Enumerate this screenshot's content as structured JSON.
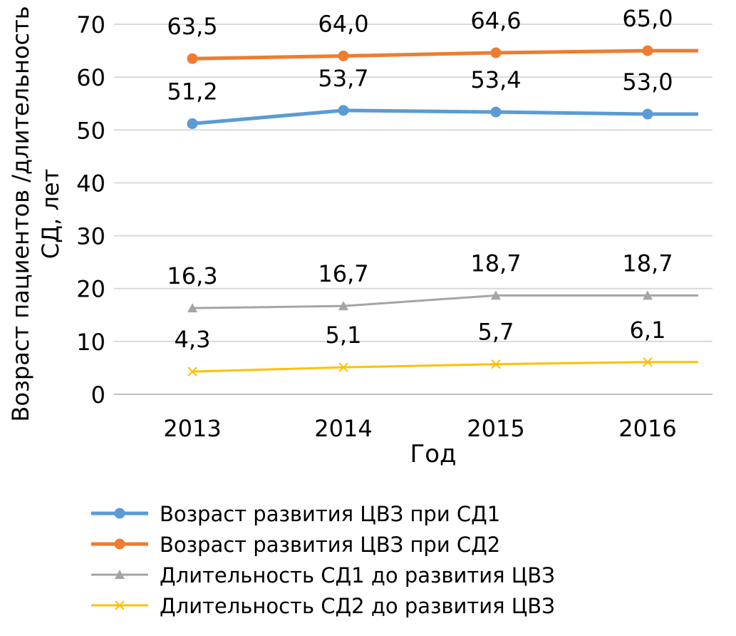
{
  "chart_data": {
    "type": "line",
    "title": "",
    "xlabel": "Год",
    "ylabel": [
      "Возраст пациентов /длительность",
      "СД, лет"
    ],
    "categories": [
      "2013",
      "2014",
      "2015",
      "2016"
    ],
    "ylim": [
      0,
      70
    ],
    "yticks": [
      "0",
      "10",
      "20",
      "30",
      "40",
      "50",
      "60",
      "70"
    ],
    "grid": true,
    "legend_position": "bottom",
    "series": [
      {
        "name": "Возраст развития ЦВЗ при СД1",
        "values": [
          51.2,
          53.7,
          53.4,
          53.0
        ],
        "labels": [
          "51,2",
          "53,7",
          "53,4",
          "53,0"
        ],
        "color": "#5b9bd5",
        "marker": "circle"
      },
      {
        "name": "Возраст развития ЦВЗ при СД2",
        "values": [
          63.5,
          64.0,
          64.6,
          65.0
        ],
        "labels": [
          "63,5",
          "64,0",
          "64,6",
          "65,0"
        ],
        "color": "#ed7d31",
        "marker": "circle"
      },
      {
        "name": "Длительность СД1 до развития ЦВЗ",
        "values": [
          16.3,
          16.7,
          18.7,
          18.7
        ],
        "labels": [
          "16,3",
          "16,7",
          "18,7",
          "18,7"
        ],
        "color": "#a5a5a5",
        "marker": "triangle"
      },
      {
        "name": "Длительность СД2 до развития ЦВЗ",
        "values": [
          4.3,
          5.1,
          5.7,
          6.1
        ],
        "labels": [
          "4,3",
          "5,1",
          "5,7",
          "6,1"
        ],
        "color": "#ffc000",
        "marker": "x"
      }
    ]
  }
}
